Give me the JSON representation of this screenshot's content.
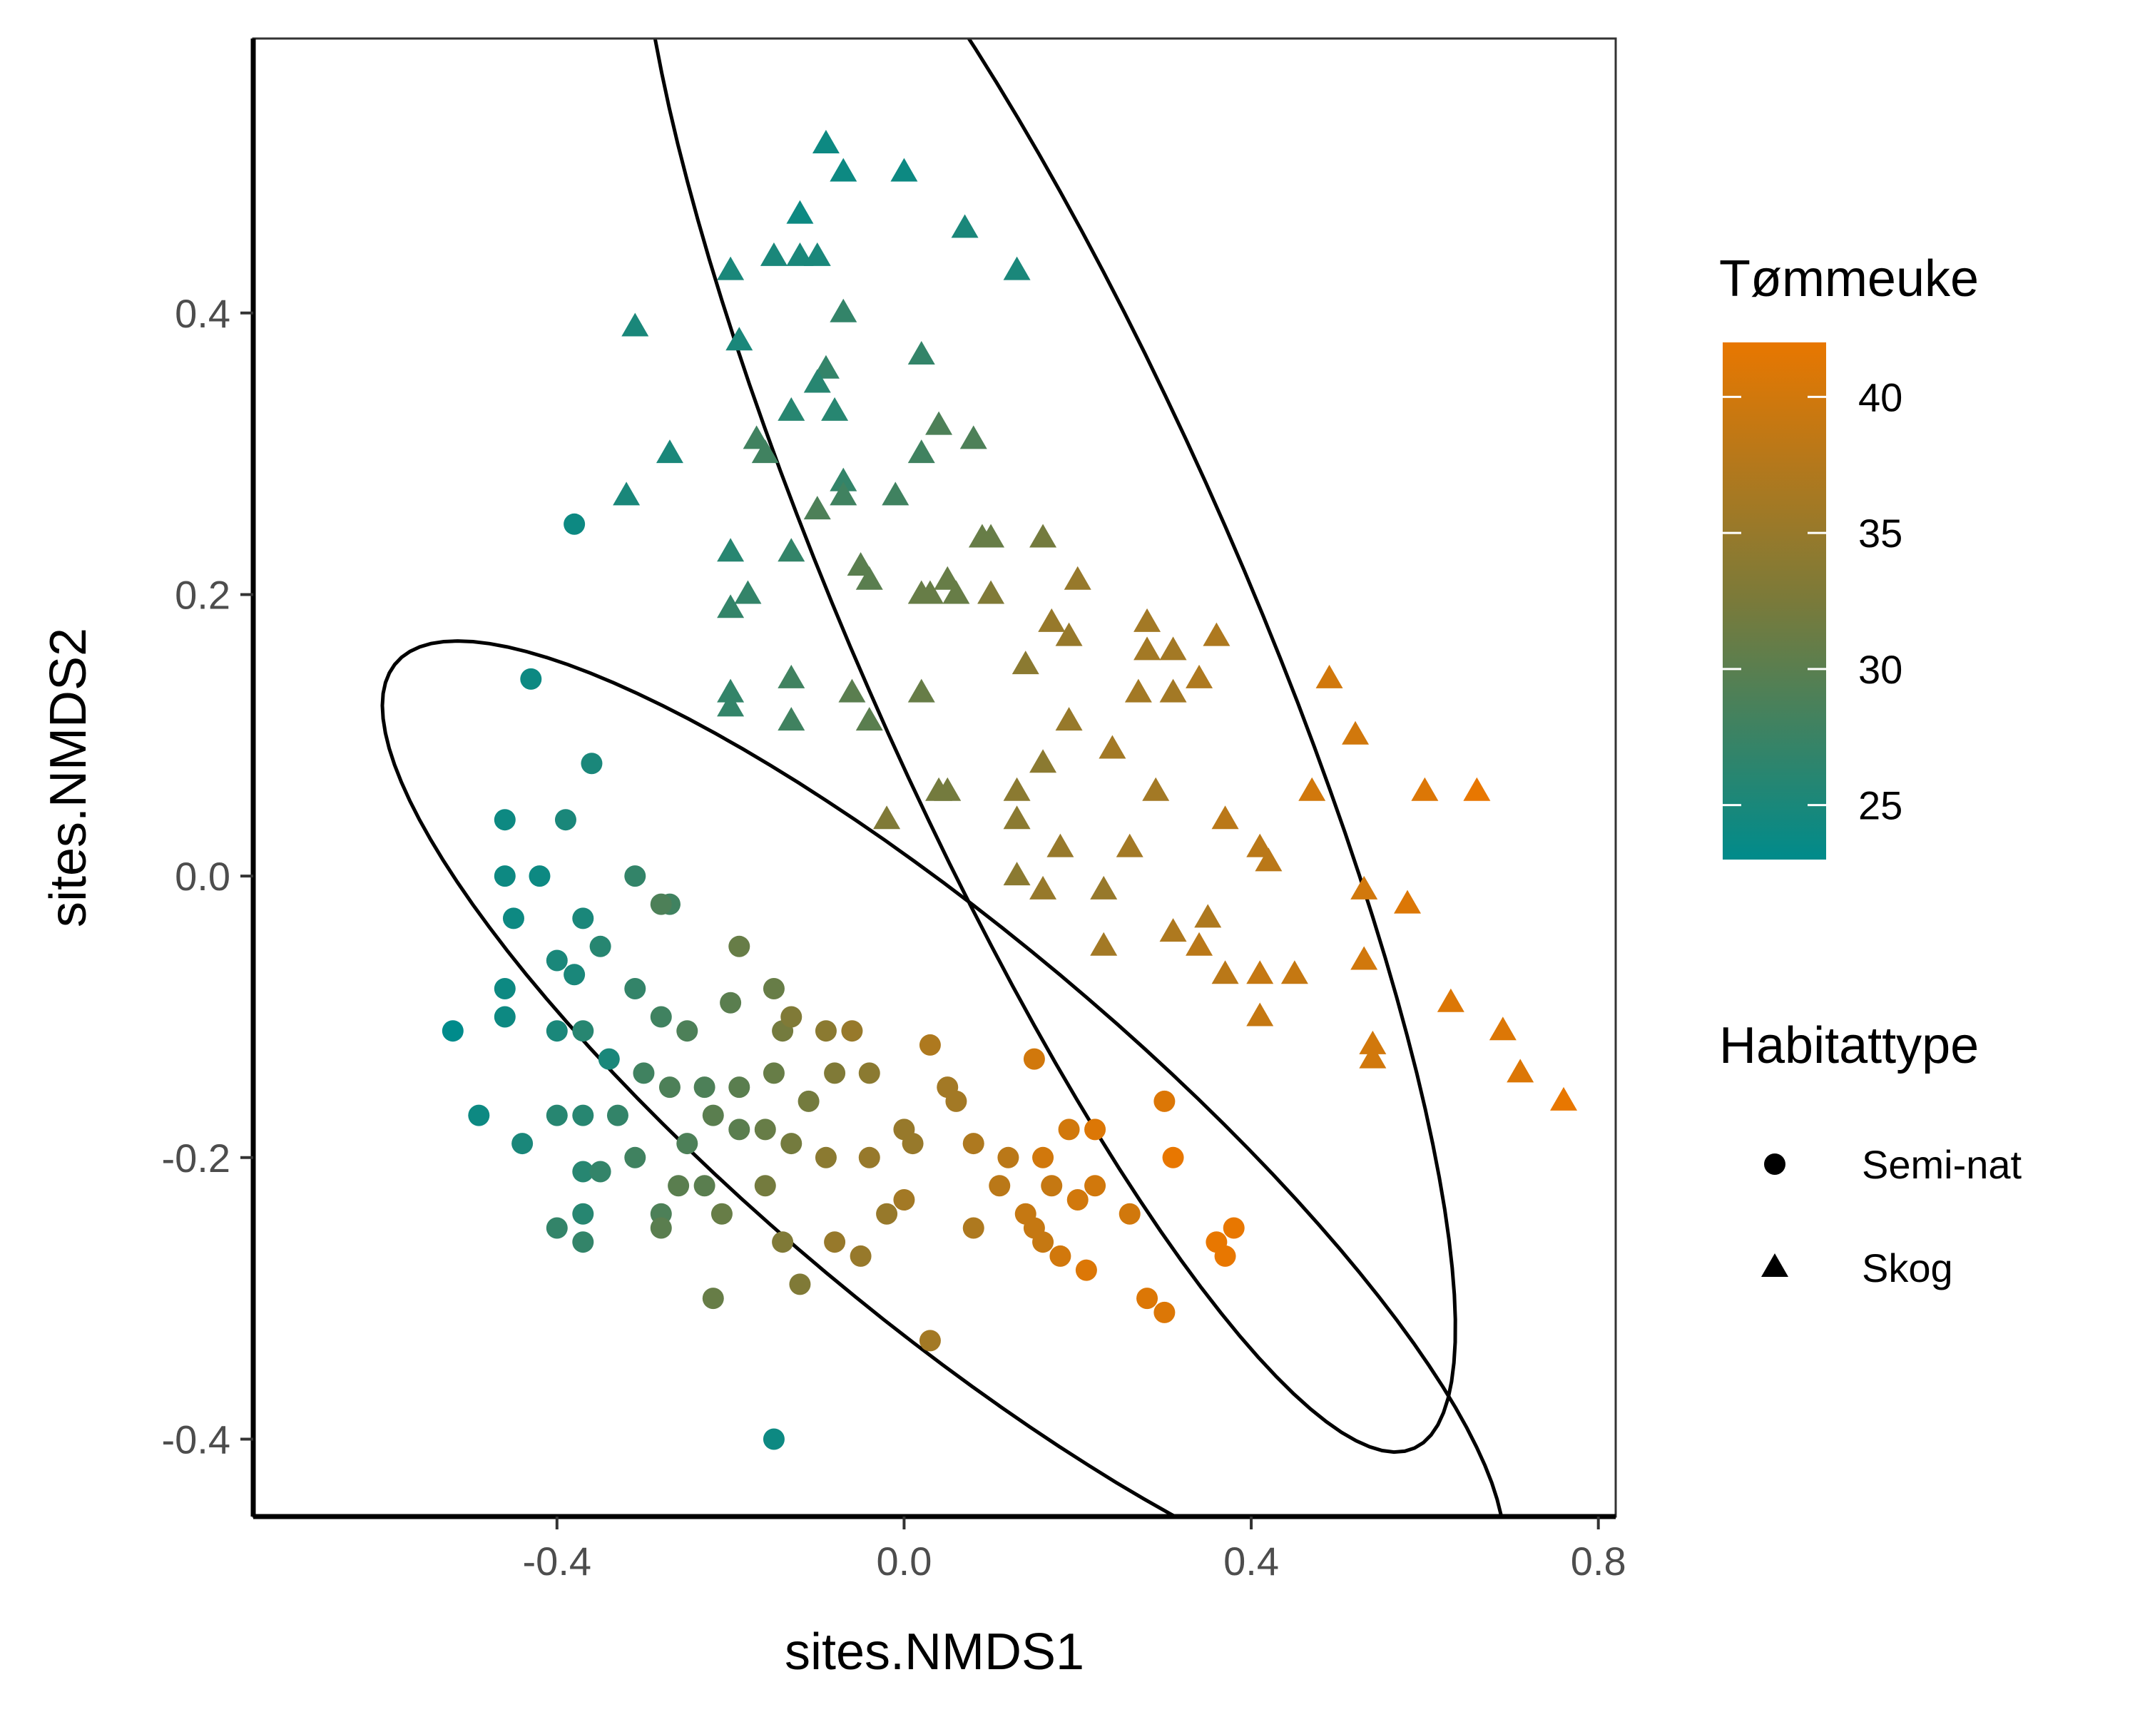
{
  "chart_data": {
    "type": "scatter",
    "xlabel": "sites.NMDS1",
    "ylabel": "sites.NMDS2",
    "xlim": [
      -0.75,
      0.82
    ],
    "ylim": [
      -0.455,
      0.595
    ],
    "x_ticks": [
      -0.4,
      0.0,
      0.4,
      0.8
    ],
    "x_tick_labels": [
      "-0.4",
      "0.0",
      "0.4",
      "0.8"
    ],
    "y_ticks": [
      -0.4,
      -0.2,
      0.0,
      0.2,
      0.4
    ],
    "y_tick_labels": [
      "-0.4",
      "-0.2",
      "0.0",
      "0.2",
      "0.4"
    ],
    "grid": false,
    "legend_placement": "right",
    "color_legend": {
      "title": "Tømmeuke",
      "min": 23,
      "max": 42,
      "ticks": [
        25,
        30,
        35,
        40
      ],
      "tick_labels": [
        "25",
        "30",
        "35",
        "40"
      ],
      "low_color": "#008B8B",
      "mid_color": "#7A7A3A",
      "high_color": "#E87700"
    },
    "shape_legend": {
      "title": "Habitattype",
      "entries": [
        {
          "label": "Semi-nat",
          "shape": "circle"
        },
        {
          "label": "Skog",
          "shape": "triangle"
        }
      ]
    },
    "ellipses": [
      {
        "group": "Semi-nat",
        "cx": 0.045,
        "cy": -0.176,
        "rx": 0.715,
        "ry": 0.155,
        "angle_deg": -26
      },
      {
        "group": "Skog",
        "cx": 0.165,
        "cy": 0.19,
        "rx": 0.735,
        "ry": 0.2,
        "angle_deg": -53
      }
    ],
    "series": [
      {
        "name": "Semi-nat",
        "points": [
          [
            -0.38,
            0.25,
            24
          ],
          [
            -0.43,
            0.14,
            24
          ],
          [
            -0.36,
            0.08,
            25
          ],
          [
            -0.46,
            0.04,
            24
          ],
          [
            -0.39,
            0.04,
            25
          ],
          [
            -0.46,
            0.0,
            24
          ],
          [
            -0.42,
            0.0,
            24
          ],
          [
            -0.45,
            -0.03,
            24
          ],
          [
            -0.37,
            -0.03,
            25
          ],
          [
            -0.31,
            0.0,
            27
          ],
          [
            -0.27,
            -0.02,
            28
          ],
          [
            -0.28,
            -0.02,
            29
          ],
          [
            -0.35,
            -0.05,
            26
          ],
          [
            -0.4,
            -0.06,
            25
          ],
          [
            -0.38,
            -0.07,
            25
          ],
          [
            -0.19,
            -0.05,
            31
          ],
          [
            -0.46,
            -0.08,
            24
          ],
          [
            -0.52,
            -0.11,
            23
          ],
          [
            -0.46,
            -0.1,
            24
          ],
          [
            -0.4,
            -0.11,
            25
          ],
          [
            -0.37,
            -0.11,
            26
          ],
          [
            -0.34,
            -0.13,
            25
          ],
          [
            -0.31,
            -0.08,
            27
          ],
          [
            -0.28,
            -0.1,
            28
          ],
          [
            -0.25,
            -0.11,
            29
          ],
          [
            -0.2,
            -0.09,
            30
          ],
          [
            -0.15,
            -0.08,
            31
          ],
          [
            -0.14,
            -0.11,
            32
          ],
          [
            -0.13,
            -0.1,
            33
          ],
          [
            -0.09,
            -0.11,
            34
          ],
          [
            -0.06,
            -0.11,
            35
          ],
          [
            0.03,
            -0.12,
            37
          ],
          [
            0.15,
            -0.13,
            40
          ],
          [
            -0.49,
            -0.17,
            24
          ],
          [
            -0.44,
            -0.19,
            25
          ],
          [
            -0.4,
            -0.17,
            26
          ],
          [
            -0.37,
            -0.17,
            26
          ],
          [
            -0.33,
            -0.17,
            27
          ],
          [
            -0.3,
            -0.14,
            28
          ],
          [
            -0.27,
            -0.15,
            29
          ],
          [
            -0.23,
            -0.15,
            29
          ],
          [
            -0.19,
            -0.15,
            30
          ],
          [
            -0.15,
            -0.14,
            31
          ],
          [
            -0.11,
            -0.16,
            32
          ],
          [
            -0.08,
            -0.14,
            33
          ],
          [
            -0.04,
            -0.14,
            34
          ],
          [
            0.05,
            -0.15,
            36
          ],
          [
            0.06,
            -0.16,
            36
          ],
          [
            -0.37,
            -0.21,
            26
          ],
          [
            -0.35,
            -0.21,
            27
          ],
          [
            -0.31,
            -0.2,
            28
          ],
          [
            -0.25,
            -0.19,
            29
          ],
          [
            -0.22,
            -0.17,
            30
          ],
          [
            -0.19,
            -0.18,
            30
          ],
          [
            -0.16,
            -0.18,
            31
          ],
          [
            -0.13,
            -0.19,
            32
          ],
          [
            0.0,
            -0.18,
            35
          ],
          [
            0.01,
            -0.19,
            35
          ],
          [
            -0.37,
            -0.24,
            26
          ],
          [
            -0.4,
            -0.25,
            27
          ],
          [
            -0.37,
            -0.26,
            27
          ],
          [
            -0.28,
            -0.24,
            29
          ],
          [
            -0.28,
            -0.25,
            30
          ],
          [
            -0.26,
            -0.22,
            30
          ],
          [
            -0.23,
            -0.22,
            30
          ],
          [
            -0.21,
            -0.24,
            31
          ],
          [
            -0.16,
            -0.22,
            32
          ],
          [
            -0.09,
            -0.2,
            34
          ],
          [
            -0.04,
            -0.2,
            35
          ],
          [
            -0.02,
            -0.24,
            35
          ],
          [
            0.0,
            -0.23,
            36
          ],
          [
            0.08,
            -0.19,
            37
          ],
          [
            0.12,
            -0.2,
            38
          ],
          [
            0.16,
            -0.2,
            40
          ],
          [
            0.19,
            -0.18,
            40
          ],
          [
            0.22,
            -0.18,
            41
          ],
          [
            0.31,
            -0.2,
            42
          ],
          [
            0.11,
            -0.22,
            38
          ],
          [
            0.14,
            -0.24,
            39
          ],
          [
            0.17,
            -0.22,
            39
          ],
          [
            0.2,
            -0.23,
            40
          ],
          [
            0.22,
            -0.22,
            40
          ],
          [
            0.08,
            -0.25,
            37
          ],
          [
            0.15,
            -0.25,
            39
          ],
          [
            0.26,
            -0.24,
            40
          ],
          [
            0.38,
            -0.25,
            42
          ],
          [
            -0.14,
            -0.26,
            33
          ],
          [
            -0.08,
            -0.26,
            35
          ],
          [
            -0.05,
            -0.27,
            35
          ],
          [
            0.16,
            -0.26,
            39
          ],
          [
            0.18,
            -0.27,
            40
          ],
          [
            0.36,
            -0.26,
            42
          ],
          [
            0.37,
            -0.27,
            42
          ],
          [
            -0.22,
            -0.3,
            31
          ],
          [
            -0.12,
            -0.29,
            33
          ],
          [
            0.21,
            -0.28,
            41
          ],
          [
            0.28,
            -0.3,
            41
          ],
          [
            0.3,
            -0.31,
            41
          ],
          [
            0.03,
            -0.33,
            36
          ],
          [
            -0.15,
            -0.4,
            24
          ],
          [
            0.3,
            -0.16,
            41
          ]
        ]
      },
      {
        "name": "Skog",
        "points": [
          [
            -0.09,
            0.52,
            24
          ],
          [
            -0.07,
            0.5,
            24
          ],
          [
            0.0,
            0.5,
            24
          ],
          [
            -0.12,
            0.47,
            24
          ],
          [
            0.07,
            0.46,
            25
          ],
          [
            0.13,
            0.43,
            25
          ],
          [
            -0.2,
            0.43,
            25
          ],
          [
            -0.15,
            0.44,
            25
          ],
          [
            -0.12,
            0.44,
            25
          ],
          [
            -0.1,
            0.44,
            25
          ],
          [
            -0.31,
            0.39,
            25
          ],
          [
            -0.19,
            0.38,
            25
          ],
          [
            -0.07,
            0.4,
            27
          ],
          [
            0.02,
            0.37,
            27
          ],
          [
            -0.09,
            0.36,
            27
          ],
          [
            -0.1,
            0.35,
            26
          ],
          [
            -0.08,
            0.33,
            26
          ],
          [
            -0.13,
            0.33,
            26
          ],
          [
            -0.27,
            0.3,
            25
          ],
          [
            -0.17,
            0.31,
            28
          ],
          [
            -0.16,
            0.3,
            28
          ],
          [
            0.04,
            0.32,
            29
          ],
          [
            0.08,
            0.31,
            29
          ],
          [
            0.02,
            0.3,
            28
          ],
          [
            -0.07,
            0.28,
            27
          ],
          [
            -0.07,
            0.27,
            28
          ],
          [
            -0.32,
            0.27,
            25
          ],
          [
            -0.01,
            0.27,
            28
          ],
          [
            -0.1,
            0.26,
            29
          ],
          [
            0.09,
            0.24,
            31
          ],
          [
            0.16,
            0.24,
            32
          ],
          [
            0.1,
            0.24,
            31
          ],
          [
            -0.2,
            0.23,
            26
          ],
          [
            -0.13,
            0.23,
            27
          ],
          [
            -0.05,
            0.22,
            30
          ],
          [
            -0.04,
            0.21,
            30
          ],
          [
            0.02,
            0.2,
            31
          ],
          [
            0.05,
            0.21,
            31
          ],
          [
            0.03,
            0.2,
            31
          ],
          [
            0.06,
            0.2,
            31
          ],
          [
            0.1,
            0.2,
            33
          ],
          [
            0.2,
            0.21,
            35
          ],
          [
            -0.18,
            0.2,
            27
          ],
          [
            -0.2,
            0.19,
            27
          ],
          [
            0.17,
            0.18,
            35
          ],
          [
            0.19,
            0.17,
            35
          ],
          [
            0.28,
            0.18,
            36
          ],
          [
            0.28,
            0.16,
            36
          ],
          [
            0.31,
            0.16,
            36
          ],
          [
            0.36,
            0.17,
            37
          ],
          [
            -0.2,
            0.13,
            27
          ],
          [
            -0.2,
            0.12,
            27
          ],
          [
            -0.13,
            0.14,
            28
          ],
          [
            -0.06,
            0.13,
            30
          ],
          [
            0.02,
            0.13,
            31
          ],
          [
            0.14,
            0.15,
            34
          ],
          [
            0.27,
            0.13,
            36
          ],
          [
            0.31,
            0.13,
            36
          ],
          [
            0.34,
            0.14,
            37
          ],
          [
            0.49,
            0.14,
            40
          ],
          [
            -0.13,
            0.11,
            28
          ],
          [
            -0.04,
            0.11,
            30
          ],
          [
            0.19,
            0.11,
            35
          ],
          [
            0.24,
            0.09,
            36
          ],
          [
            0.52,
            0.1,
            40
          ],
          [
            0.16,
            0.08,
            34
          ],
          [
            0.04,
            0.06,
            32
          ],
          [
            0.05,
            0.06,
            32
          ],
          [
            0.13,
            0.06,
            34
          ],
          [
            0.29,
            0.06,
            36
          ],
          [
            0.47,
            0.06,
            40
          ],
          [
            0.6,
            0.06,
            41
          ],
          [
            0.66,
            0.06,
            42
          ],
          [
            -0.02,
            0.04,
            33
          ],
          [
            0.13,
            0.04,
            34
          ],
          [
            0.37,
            0.04,
            38
          ],
          [
            0.41,
            0.02,
            38
          ],
          [
            0.42,
            0.01,
            38
          ],
          [
            0.13,
            0.0,
            34
          ],
          [
            0.18,
            0.02,
            35
          ],
          [
            0.26,
            0.02,
            36
          ],
          [
            0.23,
            -0.01,
            35
          ],
          [
            0.16,
            -0.01,
            35
          ],
          [
            0.53,
            -0.01,
            40
          ],
          [
            0.58,
            -0.02,
            41
          ],
          [
            0.35,
            -0.03,
            37
          ],
          [
            0.31,
            -0.04,
            37
          ],
          [
            0.23,
            -0.05,
            36
          ],
          [
            0.34,
            -0.05,
            38
          ],
          [
            0.53,
            -0.06,
            40
          ],
          [
            0.37,
            -0.07,
            38
          ],
          [
            0.41,
            -0.07,
            39
          ],
          [
            0.45,
            -0.07,
            39
          ],
          [
            0.63,
            -0.09,
            41
          ],
          [
            0.41,
            -0.1,
            39
          ],
          [
            0.69,
            -0.11,
            41
          ],
          [
            0.54,
            -0.12,
            40
          ],
          [
            0.54,
            -0.13,
            40
          ],
          [
            0.71,
            -0.14,
            41
          ],
          [
            0.76,
            -0.16,
            42
          ]
        ]
      }
    ]
  }
}
